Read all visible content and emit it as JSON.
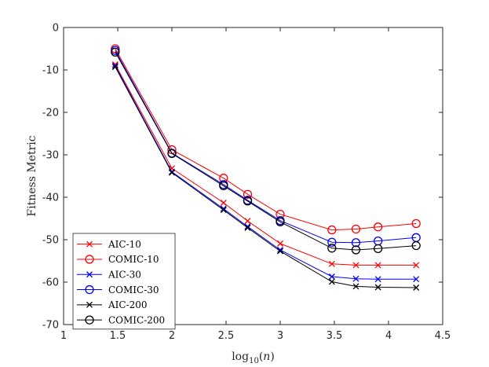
{
  "chart_data": {
    "type": "line",
    "title": "",
    "xlabel": "log₁₀(n)",
    "ylabel": "Fitness Metric",
    "xlim": [
      1,
      4.5
    ],
    "ylim": [
      -70,
      0
    ],
    "xticks": [
      1,
      1.5,
      2,
      2.5,
      3,
      3.5,
      4,
      4.5
    ],
    "xtick_labels": [
      "1",
      "1.5",
      "2",
      "2.5",
      "3",
      "3.5",
      "4",
      "4.5"
    ],
    "yticks": [
      0,
      -10,
      -20,
      -30,
      -40,
      -50,
      -60,
      -70
    ],
    "ytick_labels": [
      "0",
      "-10",
      "-20",
      "-30",
      "-40",
      "-50",
      "-60",
      "-70"
    ],
    "grid": false,
    "legend_position": "bottom-left",
    "x": [
      1.477,
      2.0,
      2.477,
      2.699,
      3.0,
      3.477,
      3.699,
      3.903,
      4.255
    ],
    "series": [
      {
        "name": "AIC-10",
        "color": "#ff0000",
        "marker": "x",
        "values": [
          -8.7,
          -33.2,
          -41.3,
          -45.6,
          -50.9,
          -55.7,
          -56.0,
          -56.0,
          -56.0
        ]
      },
      {
        "name": "COMIC-10",
        "color": "#ff0000",
        "marker": "o",
        "values": [
          -5.0,
          -28.8,
          -35.5,
          -39.3,
          -44.0,
          -47.7,
          -47.5,
          -47.0,
          -46.2
        ]
      },
      {
        "name": "AIC-30",
        "color": "#0000ff",
        "marker": "x",
        "values": [
          -9.0,
          -34.0,
          -42.7,
          -46.9,
          -52.4,
          -58.7,
          -59.2,
          -59.3,
          -59.3
        ]
      },
      {
        "name": "COMIC-30",
        "color": "#0000ff",
        "marker": "o",
        "values": [
          -5.4,
          -29.6,
          -37.0,
          -40.7,
          -45.5,
          -50.6,
          -50.7,
          -50.3,
          -49.5
        ]
      },
      {
        "name": "AIC-200",
        "color": "#000000",
        "marker": "x",
        "values": [
          -9.3,
          -34.2,
          -43.0,
          -47.2,
          -52.7,
          -59.9,
          -61.0,
          -61.2,
          -61.3
        ]
      },
      {
        "name": "COMIC-200",
        "color": "#000000",
        "marker": "o",
        "values": [
          -5.8,
          -29.7,
          -37.3,
          -40.9,
          -45.8,
          -52.0,
          -52.4,
          -52.1,
          -51.4
        ]
      }
    ]
  }
}
